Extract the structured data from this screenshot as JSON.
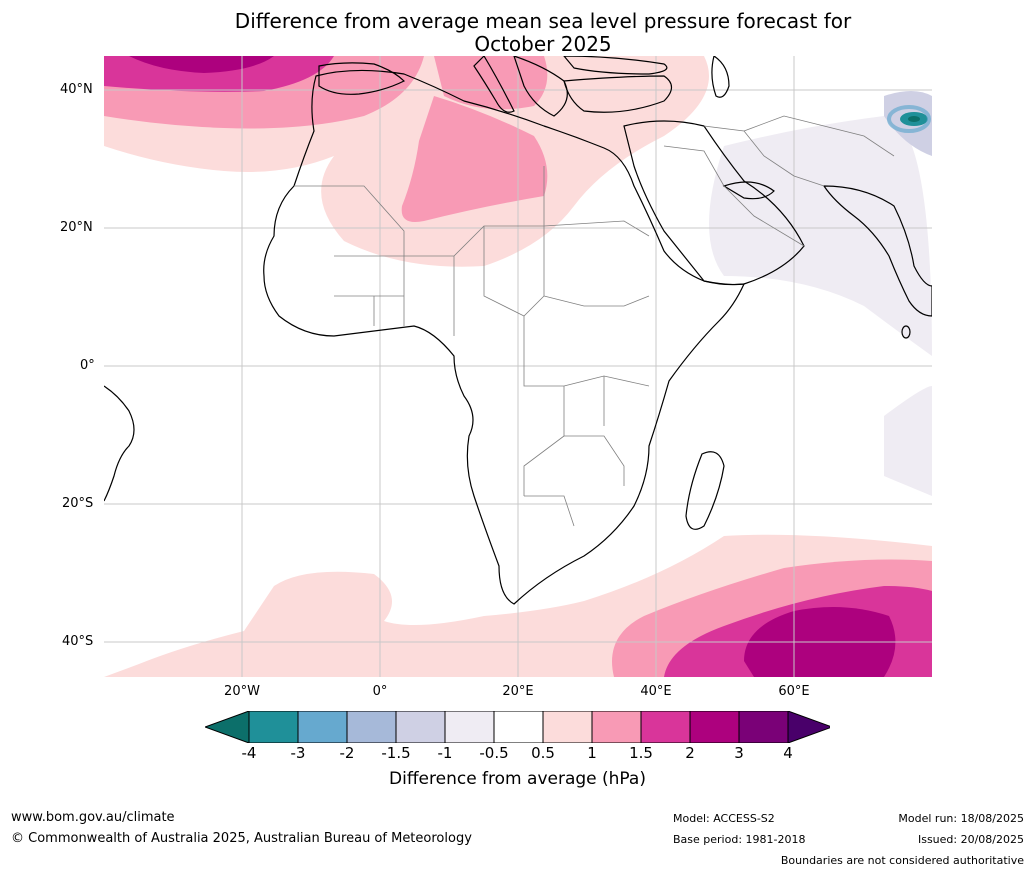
{
  "title_line1": "Difference from average mean sea level pressure forecast for",
  "title_line2": "October 2025",
  "lat_labels": [
    "40°N",
    "20°N",
    "0°",
    "20°S",
    "40°S"
  ],
  "lon_labels": [
    "20°W",
    "0°",
    "20°E",
    "40°E",
    "60°E"
  ],
  "colorbar": {
    "ticks": [
      "-4",
      "-3",
      "-2",
      "-1.5",
      "-1",
      "-0.5",
      "0.5",
      "1",
      "1.5",
      "2",
      "3",
      "4"
    ],
    "colors": [
      "#0c6f6a",
      "#1f9099",
      "#66a9cf",
      "#a6b9d9",
      "#cfd0e4",
      "#efecf3",
      "#ffffff",
      "#fcdcdb",
      "#f89ab5",
      "#d9359a",
      "#ad017e",
      "#7a0177",
      "#49006a"
    ],
    "label": "Difference from average (hPa)"
  },
  "footer": {
    "website": "www.bom.gov.au/climate",
    "copyright": "© Commonwealth of Australia 2025, Australian Bureau of Meteorology",
    "model": "Model: ACCESS-S2",
    "base_period": "Base period: 1981-2018",
    "model_run": "Model run: 18/08/2025",
    "issued": "Issued: 20/08/2025",
    "disclaimer": "Boundaries are not considered authoritative"
  }
}
